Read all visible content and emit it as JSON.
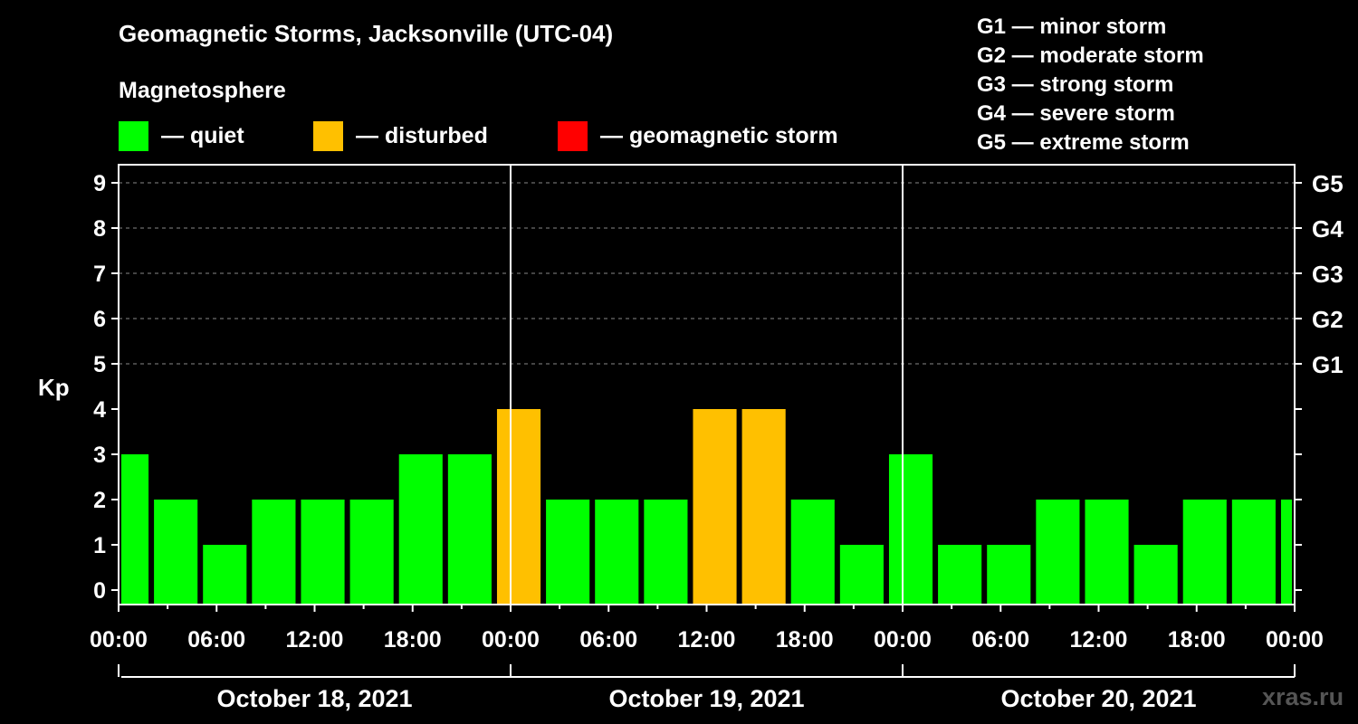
{
  "header": {
    "title": "Geomagnetic Storms, Jacksonville (UTC-04)",
    "subtitle": "Magnetosphere"
  },
  "legend": [
    {
      "label": "— quiet",
      "color": "#00ff00"
    },
    {
      "label": "— disturbed",
      "color": "#ffc000"
    },
    {
      "label": "— geomagnetic storm",
      "color": "#ff0000"
    }
  ],
  "storm_scale": [
    "G1 — minor storm",
    "G2 — moderate storm",
    "G3 — strong storm",
    "G4 — severe storm",
    "G5 — extreme storm"
  ],
  "watermark": "xras.ru",
  "chart_data": {
    "type": "bar",
    "ylabel": "Kp",
    "ylim": [
      0,
      9
    ],
    "yticks": [
      0,
      1,
      2,
      3,
      4,
      5,
      6,
      7,
      8,
      9
    ],
    "right_ticks": [
      {
        "value": 5,
        "label": "G1"
      },
      {
        "value": 6,
        "label": "G2"
      },
      {
        "value": 7,
        "label": "G3"
      },
      {
        "value": 8,
        "label": "G4"
      },
      {
        "value": 9,
        "label": "G5"
      }
    ],
    "xtick_labels": [
      "00:00",
      "06:00",
      "12:00",
      "18:00",
      "00:00",
      "06:00",
      "12:00",
      "18:00",
      "00:00",
      "06:00",
      "12:00",
      "18:00",
      "00:00"
    ],
    "days": [
      "October 18, 2021",
      "October 19, 2021",
      "October 20, 2021"
    ],
    "grid": "horizontal dashed at Kp 5-9",
    "interval_hours": 3,
    "start_offset_hours": -1,
    "values": [
      3,
      2,
      1,
      2,
      2,
      2,
      3,
      3,
      4,
      2,
      2,
      2,
      4,
      4,
      2,
      1,
      3,
      1,
      1,
      2,
      2,
      1,
      2,
      2,
      2
    ],
    "status": [
      "quiet",
      "quiet",
      "quiet",
      "quiet",
      "quiet",
      "quiet",
      "quiet",
      "quiet",
      "disturbed",
      "quiet",
      "quiet",
      "quiet",
      "disturbed",
      "disturbed",
      "quiet",
      "quiet",
      "quiet",
      "quiet",
      "quiet",
      "quiet",
      "quiet",
      "quiet",
      "quiet",
      "quiet",
      "quiet"
    ],
    "colors": {
      "quiet": "#00ff00",
      "disturbed": "#ffc000",
      "storm": "#ff0000"
    }
  }
}
